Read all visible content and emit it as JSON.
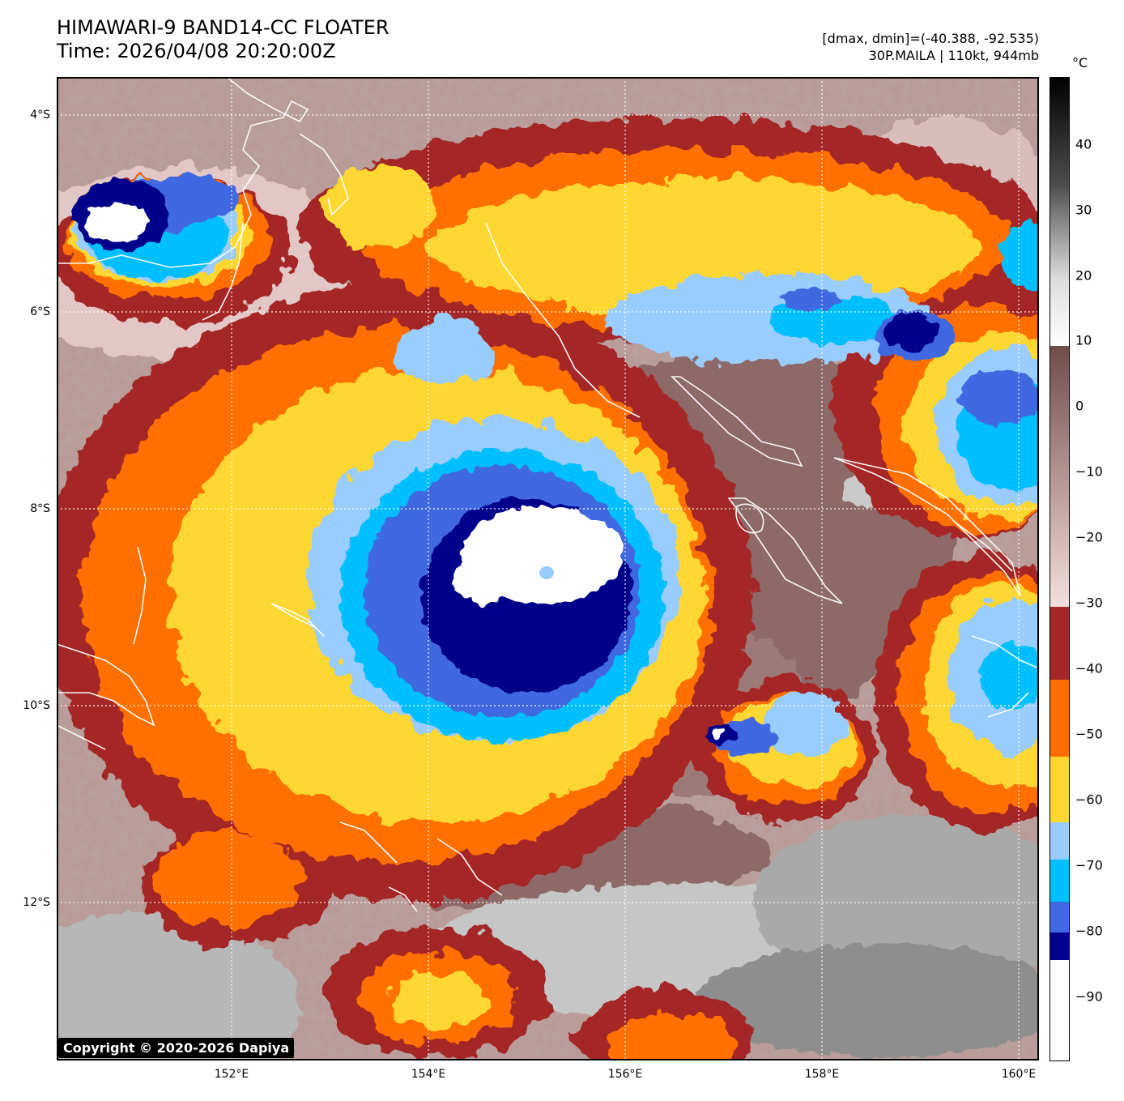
{
  "header": {
    "title_line1": "HIMAWARI-9 BAND14-CC FLOATER",
    "title_line2": "Time: 2026/04/08 20:20:00Z",
    "range_text": "[dmax, dmin]=(-40.388, -92.535)",
    "storm_text": "30P.MAILA | 110kt, 944mb"
  },
  "map": {
    "lat_labels": [
      "4°S",
      "6°S",
      "8°S",
      "10°S",
      "12°S"
    ],
    "lon_labels": [
      "152°E",
      "154°E",
      "156°E",
      "158°E",
      "160°E"
    ],
    "copyright": "Copyright © 2020-2026 Dapiya",
    "palette": {
      "white": "#ffffff",
      "navy": "#00008b",
      "royal_blue": "#4169e1",
      "deep_sky": "#00bfff",
      "light_sky": "#99ccff",
      "gold": "#ffd732",
      "orange": "#ff6f00",
      "brown_red": "#a52727",
      "pink_light": "#e9c8c8",
      "mauve": "#a98582",
      "dark_mauve": "#7d5a57",
      "gray_light": "#c9c9c9",
      "gray_mid": "#8a8a8a",
      "coast": "#ffffff"
    }
  },
  "colorbar": {
    "unit": "°C",
    "ticks": [
      "40",
      "30",
      "20",
      "10",
      "0",
      "−10",
      "−20",
      "−30",
      "−40",
      "−50",
      "−60",
      "−70",
      "−80",
      "−90"
    ],
    "range_min": -100,
    "range_max": 50
  }
}
